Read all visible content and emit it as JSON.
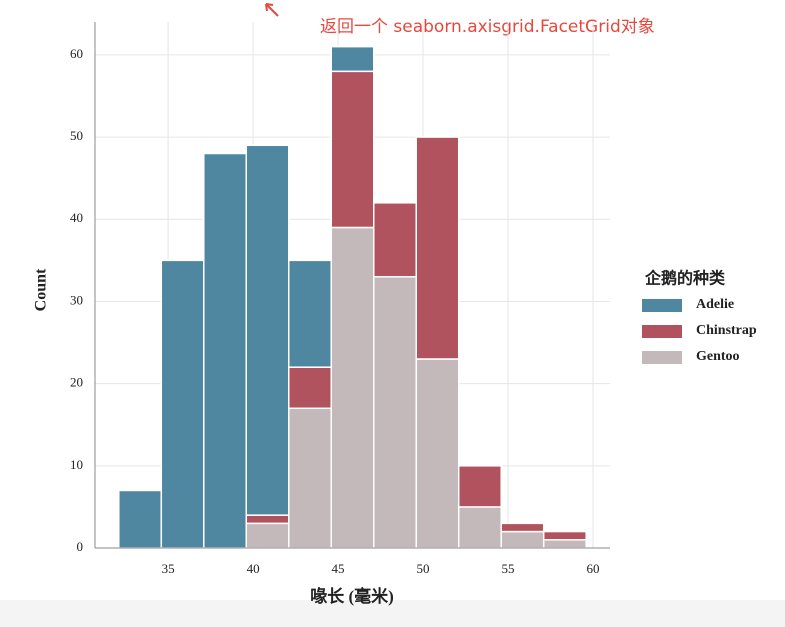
{
  "annotation": "返回一个 seaborn.axisgrid.FacetGrid对象",
  "chart_data": {
    "type": "histogram",
    "xlabel": "喙长 (毫米)",
    "ylabel": "Count",
    "legend_title": "企鹅的种类",
    "legend_position": "right",
    "stacked": true,
    "grid": true,
    "bins": [
      32.1,
      34.6,
      37.1,
      39.6,
      42.1,
      44.6,
      47.1,
      49.6,
      52.1,
      54.6,
      57.1,
      59.6
    ],
    "series": [
      {
        "name": "Adelie",
        "color": "#4f87a1",
        "values": [
          7,
          35,
          48,
          45,
          13,
          3,
          0,
          0,
          0,
          0,
          0
        ]
      },
      {
        "name": "Chinstrap",
        "color": "#b0535f",
        "values": [
          0,
          0,
          0,
          1,
          5,
          19,
          9,
          27,
          5,
          1,
          1
        ]
      },
      {
        "name": "Gentoo",
        "color": "#c3b9ba",
        "values": [
          0,
          0,
          0,
          3,
          17,
          39,
          33,
          23,
          5,
          2,
          1
        ]
      }
    ],
    "xlim": [
      30.7,
      61
    ],
    "xticks": [
      35,
      40,
      45,
      50,
      55,
      60
    ],
    "ylim": [
      0,
      64
    ],
    "yticks": [
      0,
      10,
      20,
      30,
      40,
      50,
      60
    ]
  }
}
